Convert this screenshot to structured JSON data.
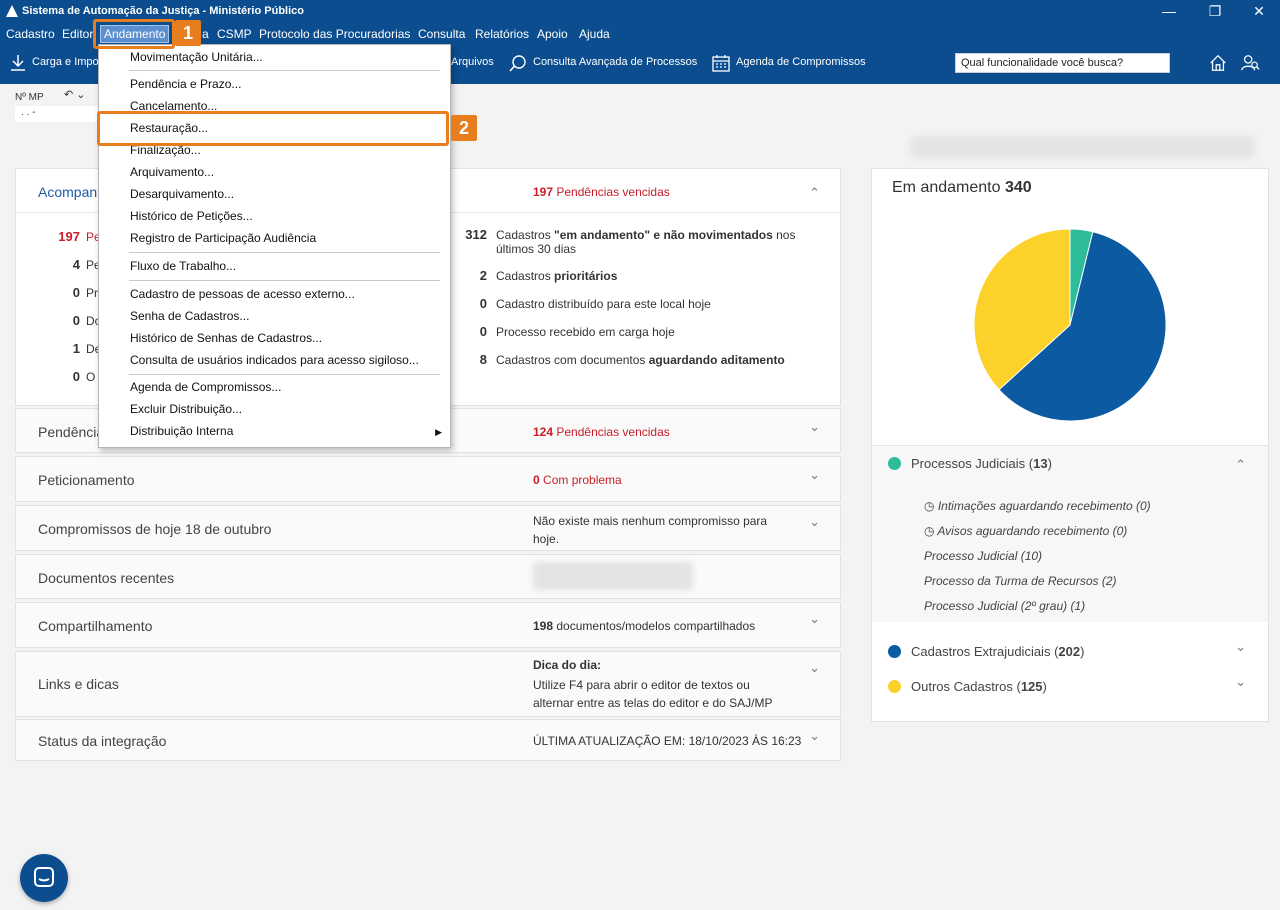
{
  "window": {
    "title": "Sistema de Automação da Justiça - Ministério Público"
  },
  "menu": {
    "items": [
      "Cadastro",
      "Editor",
      "Andamento",
      "a",
      "CSMP",
      "Protocolo das Procuradorias",
      "Consulta",
      "Relatórios",
      "Apoio",
      "Ajuda"
    ]
  },
  "toolbar": {
    "carga": "Carga e Impo",
    "arquivos": "Arquivos",
    "consulta": "Consulta Avançada de Processos",
    "agenda": "Agenda de Compromissos",
    "search_placeholder": "Qual funcionalidade você busca?"
  },
  "nmp": {
    "label": "Nº MP",
    "value": ".  .   -"
  },
  "dropdown": {
    "items": [
      "Movimentação Unitária...",
      "Pendência e Prazo...",
      "Cancelamento...",
      "Restauração...",
      "Finalização...",
      "Arquivamento...",
      "Desarquivamento...",
      "Histórico de Petições...",
      "Registro de Participação Audiência",
      "Fluxo de Trabalho...",
      "Cadastro de pessoas de acesso externo...",
      "Senha de Cadastros...",
      "Histórico de Senhas de Cadastros...",
      "Consulta de usuários indicados para acesso sigiloso...",
      "Agenda de Compromissos...",
      "Excluir Distribuição...",
      "Distribuição Interna"
    ]
  },
  "callouts": {
    "one": "1",
    "two": "2"
  },
  "acomp": {
    "title": "Acompan",
    "overdue_num": "197",
    "overdue_label": "Pendências vencidas",
    "left": [
      {
        "n": "197",
        "t": "Pe"
      },
      {
        "n": "4",
        "t": "Pe"
      },
      {
        "n": "0",
        "t": "Pr"
      },
      {
        "n": "0",
        "t": "Do"
      },
      {
        "n": "1",
        "t": "De"
      },
      {
        "n": "0",
        "t": "O"
      }
    ],
    "right": [
      {
        "n": "312",
        "pre": "Cadastros ",
        "b": "\"em andamento\" e não movimentados",
        "post": " nos últimos 30 dias"
      },
      {
        "n": "2",
        "pre": "Cadastros ",
        "b": "prioritários",
        "post": ""
      },
      {
        "n": "0",
        "pre": "Cadastro distribuído para este local hoje",
        "b": "",
        "post": ""
      },
      {
        "n": "0",
        "pre": "Processo recebido em carga hoje",
        "b": "",
        "post": ""
      },
      {
        "n": "8",
        "pre": "Cadastros com documentos ",
        "b": "aguardando aditamento",
        "post": ""
      }
    ]
  },
  "cards": {
    "pendencia": {
      "title": "Pendência",
      "num": "124",
      "info": "Pendências vencidas"
    },
    "peticionamento": {
      "title": "Peticionamento",
      "num": "0",
      "info": "Com problema"
    },
    "compromissos": {
      "title": "Compromissos de hoje 18 de outubro",
      "info": "Não existe mais nenhum compromisso para hoje."
    },
    "documentos": {
      "title": "Documentos recentes"
    },
    "compartilhamento": {
      "title": "Compartilhamento",
      "num": "198",
      "info": "documentos/modelos compartilhados"
    },
    "links": {
      "title": "Links e dicas",
      "tip_title": "Dica do dia:",
      "tip": "Utilize F4 para abrir o editor de textos ou alternar entre as telas do editor e do SAJ/MP"
    },
    "status": {
      "title": "Status da integração",
      "info": "ÚLTIMA ATUALIZAÇÃO EM: 18/10/2023 ÀS 16:23"
    }
  },
  "right": {
    "title": "Em andamento",
    "total": "340",
    "legend": [
      {
        "name": "Processos Judiciais",
        "count": "13",
        "color": "#2dbd9b"
      },
      {
        "name": "Cadastros Extrajudiciais",
        "count": "202",
        "color": "#0b5aa2"
      },
      {
        "name": "Outros Cadastros",
        "count": "125",
        "color": "#fcd12a"
      }
    ],
    "sub": [
      "Intimações aguardando recebimento (0)",
      "Avisos aguardando recebimento (0)",
      "Processo Judicial (10)",
      "Processo da Turma de Recursos (2)",
      "Processo Judicial (2º grau) (1)"
    ]
  },
  "chart_data": {
    "type": "pie",
    "title": "Em andamento 340",
    "categories": [
      "Processos Judiciais",
      "Cadastros Extrajudiciais",
      "Outros Cadastros"
    ],
    "values": [
      13,
      202,
      125
    ],
    "colors": [
      "#2dbd9b",
      "#0b5aa2",
      "#fcd12a"
    ]
  }
}
